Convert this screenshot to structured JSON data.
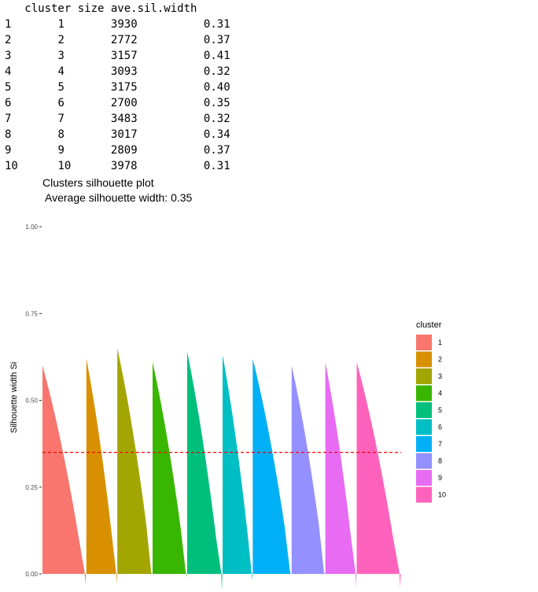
{
  "table": {
    "header": "   cluster size ave.sil.width",
    "rows": [
      {
        "row": "1",
        "cluster": "1",
        "size": "3930",
        "ave": "0.31"
      },
      {
        "row": "2",
        "cluster": "2",
        "size": "2772",
        "ave": "0.37"
      },
      {
        "row": "3",
        "cluster": "3",
        "size": "3157",
        "ave": "0.41"
      },
      {
        "row": "4",
        "cluster": "4",
        "size": "3093",
        "ave": "0.32"
      },
      {
        "row": "5",
        "cluster": "5",
        "size": "3175",
        "ave": "0.40"
      },
      {
        "row": "6",
        "cluster": "6",
        "size": "2700",
        "ave": "0.35"
      },
      {
        "row": "7",
        "cluster": "7",
        "size": "3483",
        "ave": "0.32"
      },
      {
        "row": "8",
        "cluster": "8",
        "size": "3017",
        "ave": "0.34"
      },
      {
        "row": "9",
        "cluster": "9",
        "size": "2809",
        "ave": "0.37"
      },
      {
        "row": "10",
        "cluster": "10",
        "size": "3978",
        "ave": "0.31"
      }
    ]
  },
  "chart_data": {
    "type": "area",
    "title": "Clusters silhouette plot",
    "subtitle": "Average silhouette width: 0.35",
    "ylabel": "Silhouette width Si",
    "xlabel": "",
    "ylim": [
      0,
      1
    ],
    "y_ticks": [
      "0.00",
      "0.25",
      "0.50",
      "0.75",
      "1.00"
    ],
    "average_line": 0.35,
    "average_line_color": "#ff0000",
    "legend_title": "cluster",
    "legend_position": "right",
    "grid": false,
    "clusters": [
      {
        "label": "1",
        "size": 3930,
        "max": 0.6,
        "min": -0.03,
        "color": "#F8766D"
      },
      {
        "label": "2",
        "size": 2772,
        "max": 0.62,
        "min": -0.03,
        "color": "#D89000"
      },
      {
        "label": "3",
        "size": 3157,
        "max": 0.65,
        "min": 0.0,
        "color": "#A3A500"
      },
      {
        "label": "4",
        "size": 3093,
        "max": 0.61,
        "min": -0.01,
        "color": "#39B600"
      },
      {
        "label": "5",
        "size": 3175,
        "max": 0.64,
        "min": -0.05,
        "color": "#00BF7D"
      },
      {
        "label": "6",
        "size": 2700,
        "max": 0.63,
        "min": -0.02,
        "color": "#00BFC4"
      },
      {
        "label": "7",
        "size": 3483,
        "max": 0.62,
        "min": 0.0,
        "color": "#00B0F6"
      },
      {
        "label": "8",
        "size": 3017,
        "max": 0.6,
        "min": 0.0,
        "color": "#9590FF"
      },
      {
        "label": "9",
        "size": 2809,
        "max": 0.61,
        "min": -0.04,
        "color": "#E76BF3"
      },
      {
        "label": "10",
        "size": 3978,
        "max": 0.61,
        "min": -0.04,
        "color": "#FF62BC"
      }
    ]
  }
}
